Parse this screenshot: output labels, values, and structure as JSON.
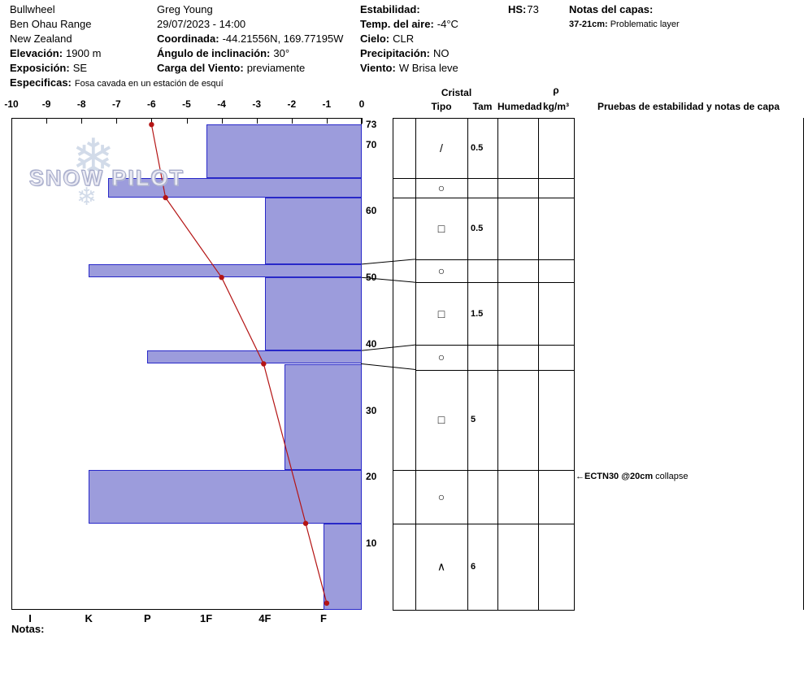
{
  "header": {
    "col1": [
      {
        "label": "",
        "value": "Bullwheel"
      },
      {
        "label": "",
        "value": "Ben Ohau Range"
      },
      {
        "label": "",
        "value": "New Zealand"
      },
      {
        "label": "Elevación:",
        "value": "1900 m"
      },
      {
        "label": "Exposición:",
        "value": "SE"
      },
      {
        "label": "Especificas:",
        "value": "Fosa cavada en un estación de esquí"
      }
    ],
    "col2": [
      {
        "label": "",
        "value": "Greg Young"
      },
      {
        "label": "",
        "value": "29/07/2023 - 14:00"
      },
      {
        "label": "Coordinada:",
        "value": "-44.21556N, 169.77195W"
      },
      {
        "label": "Ángulo de inclinación:",
        "value": "30°"
      },
      {
        "label": "Carga del Viento:",
        "value": "previamente"
      }
    ],
    "col3": [
      {
        "label": "Estabilidad:",
        "value": ""
      },
      {
        "label": "Temp. del aire:",
        "value": "-4°C"
      },
      {
        "label": "Cielo:",
        "value": "CLR"
      },
      {
        "label": "Precipitación:",
        "value": "NO"
      },
      {
        "label": "Viento:",
        "value": "W Brisa leve"
      }
    ],
    "hs_label": "HS:",
    "hs_value": "73",
    "layer_notes_title": "Notas del capas:",
    "layer_note_label": "37-21cm:",
    "layer_note_value": "Problematic layer"
  },
  "logo": {
    "text": "SNOW PILOT"
  },
  "chart_data": {
    "type": "snow-profile",
    "temp_axis": {
      "min": -10,
      "max": 0,
      "ticks": [
        -10,
        -9,
        -8,
        -7,
        -6,
        -5,
        -4,
        -3,
        -2,
        -1,
        0
      ]
    },
    "depth_axis": {
      "surface_cm": 73,
      "max_cm": 74,
      "tick_labels": [
        73,
        70,
        60,
        50,
        40,
        30,
        20,
        10
      ]
    },
    "hardness_axis": {
      "categories": [
        "I",
        "K",
        "P",
        "1F",
        "4F",
        "F"
      ]
    },
    "layers": [
      {
        "top_cm": 73,
        "bottom_cm": 65,
        "hardness": "1F",
        "grain_symbol": "/",
        "grain_name": "decomposing-fragments-icon",
        "grain_size_mm": "0.5"
      },
      {
        "top_cm": 65,
        "bottom_cm": 62,
        "hardness": "K-",
        "grain_symbol": "○",
        "grain_name": "rounded-grains-icon",
        "grain_size_mm": ""
      },
      {
        "top_cm": 62,
        "bottom_cm": 52,
        "hardness": "4F",
        "grain_symbol": "□",
        "grain_name": "faceted-crystals-icon",
        "grain_size_mm": "0.5"
      },
      {
        "top_cm": 52,
        "bottom_cm": 50,
        "hardness": "K",
        "grain_symbol": "○",
        "grain_name": "rounded-grains-icon",
        "grain_size_mm": ""
      },
      {
        "top_cm": 50,
        "bottom_cm": 39,
        "hardness": "4F",
        "grain_symbol": "□",
        "grain_name": "faceted-crystals-icon",
        "grain_size_mm": "1.5"
      },
      {
        "top_cm": 39,
        "bottom_cm": 37,
        "hardness": "P",
        "grain_symbol": "○",
        "grain_name": "rounded-grains-icon",
        "grain_size_mm": ""
      },
      {
        "top_cm": 37,
        "bottom_cm": 21,
        "hardness": "4F-",
        "grain_symbol": "□",
        "grain_name": "faceted-crystals-icon",
        "grain_size_mm": "5"
      },
      {
        "top_cm": 21,
        "bottom_cm": 13,
        "hardness": "K",
        "grain_symbol": "○",
        "grain_name": "rounded-grains-icon",
        "grain_size_mm": ""
      },
      {
        "top_cm": 13,
        "bottom_cm": 0,
        "hardness": "F",
        "grain_symbol": "∧",
        "grain_name": "depth-hoar-icon",
        "grain_size_mm": "6"
      }
    ],
    "temperature_profile": [
      {
        "depth_cm": 73,
        "temp_c": -6.0
      },
      {
        "depth_cm": 62,
        "temp_c": -5.6
      },
      {
        "depth_cm": 50,
        "temp_c": -4.0
      },
      {
        "depth_cm": 37,
        "temp_c": -2.8
      },
      {
        "depth_cm": 13,
        "temp_c": -1.6
      },
      {
        "depth_cm": 1,
        "temp_c": -1.0
      }
    ],
    "stability_tests": [
      {
        "depth_cm": 20,
        "arrow": "←",
        "label_bold": "ECTN30 @20cm",
        "label": "collapse"
      }
    ],
    "colors": {
      "bar_fill": "#9c9cdc",
      "bar_border": "#2828c8",
      "temp_line": "#b41414",
      "grid": "#000000"
    }
  },
  "panel": {
    "header_cristal": "Cristal",
    "header_rho": "ρ",
    "columns": [
      "Tipo",
      "Tam",
      "Humedad",
      "kg/m³"
    ],
    "tests_header": "Pruebas de estabilidad y notas de capa"
  },
  "footer": {
    "notes_label": "Notas:"
  }
}
